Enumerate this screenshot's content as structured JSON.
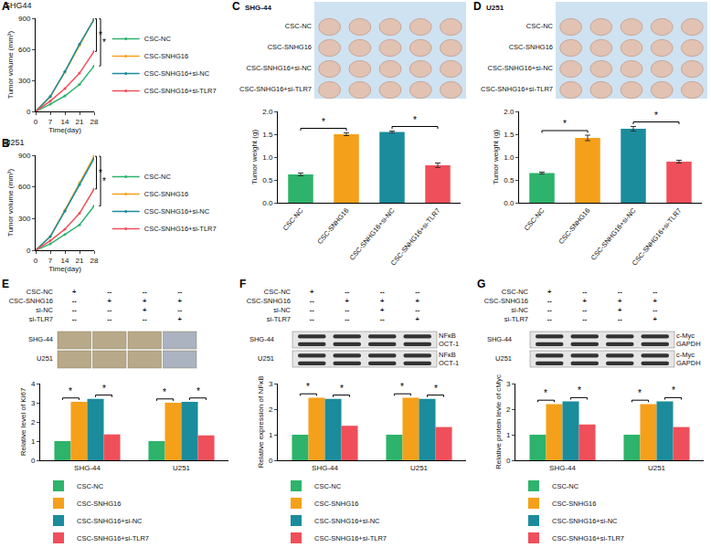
{
  "chart_data": [
    {
      "panel": "A",
      "type": "line",
      "title": "SHG44",
      "x_label": "Time(day)",
      "y_label": "Tumor volume (mm³)",
      "x": [
        0,
        7,
        14,
        21,
        28
      ],
      "xlim": [
        0,
        28
      ],
      "xticks": [
        0,
        7,
        14,
        21,
        28
      ],
      "ylim": [
        0,
        900
      ],
      "yticks": [
        0,
        300,
        600,
        900
      ],
      "series": [
        {
          "name": "CSC-NC",
          "color": "#2db36b",
          "values": [
            0,
            70,
            150,
            260,
            440
          ]
        },
        {
          "name": "CSC-SNHG16",
          "color": "#f5a01a",
          "values": [
            0,
            140,
            380,
            640,
            895
          ]
        },
        {
          "name": "CSC-SNHG16+si-NC",
          "color": "#1a8c9c",
          "values": [
            0,
            145,
            385,
            650,
            890
          ]
        },
        {
          "name": "CSC-SNHG16+si-TLR7",
          "color": "#ef4f5a",
          "values": [
            0,
            100,
            220,
            370,
            580
          ]
        }
      ],
      "brackets": [
        {
          "from": "CSC-SNHG16",
          "to": "CSC-SNHG16+si-TLR7",
          "label": "*"
        },
        {
          "from": "CSC-SNHG16",
          "to": "CSC-NC",
          "label": "*"
        }
      ]
    },
    {
      "panel": "B",
      "type": "line",
      "title": "U251",
      "x_label": "Time(day)",
      "y_label": "Tumor volume (mm³)",
      "x": [
        0,
        7,
        14,
        21,
        28
      ],
      "xlim": [
        0,
        28
      ],
      "xticks": [
        0,
        7,
        14,
        21,
        28
      ],
      "ylim": [
        0,
        900
      ],
      "yticks": [
        0,
        300,
        600,
        900
      ],
      "series": [
        {
          "name": "CSC-NC",
          "color": "#2db36b",
          "values": [
            0,
            60,
            150,
            240,
            420
          ]
        },
        {
          "name": "CSC-SNHG16",
          "color": "#f5a01a",
          "values": [
            0,
            130,
            380,
            640,
            890
          ]
        },
        {
          "name": "CSC-SNHG16+si-NC",
          "color": "#1a8c9c",
          "values": [
            0,
            130,
            370,
            620,
            870
          ]
        },
        {
          "name": "CSC-SNHG16+si-TLR7",
          "color": "#ef4f5a",
          "values": [
            0,
            90,
            200,
            350,
            580
          ]
        }
      ],
      "brackets": [
        {
          "from": "CSC-SNHG16",
          "to": "CSC-SNHG16+si-TLR7",
          "label": "*"
        },
        {
          "from": "CSC-SNHG16",
          "to": "CSC-NC",
          "label": "*"
        }
      ]
    },
    {
      "panel": "C",
      "type": "bar",
      "photo_title": "SHG-44",
      "photo_rows": [
        "CSC-NC",
        "CSC-SNHG16",
        "CSC-SNHG16+si-NC",
        "CSC-SNHG16+si-TLR7"
      ],
      "categories": [
        "CSC-NC",
        "CSC-SNHG16",
        "CSC-SNHG16+si-NC",
        "CSC-SNHG16+si-TLR7"
      ],
      "values": [
        0.62,
        1.5,
        1.55,
        0.82
      ],
      "errors": [
        0.03,
        0.03,
        0.02,
        0.05
      ],
      "colors": [
        "#2db36b",
        "#f5a01a",
        "#1a8c9c",
        "#ef4f5a"
      ],
      "y_label": "Tumor weight (g)",
      "ylim": [
        0,
        2
      ],
      "yticks": [
        {
          "value": 0,
          "label": "0.0"
        },
        0.5,
        {
          "value": 1,
          "label": "1.0"
        },
        1.5,
        {
          "value": 2,
          "label": "2.0"
        }
      ],
      "brackets": [
        {
          "from": 0,
          "to": 1,
          "label": "*"
        },
        {
          "from": 2,
          "to": 3,
          "label": "*"
        }
      ]
    },
    {
      "panel": "D",
      "type": "bar",
      "photo_title": "U251",
      "photo_rows": [
        "CSC-NC",
        "CSC-SNHG16",
        "CSC-SNHG16+si-NC",
        "CSC-SNHG16+si-TLR7"
      ],
      "categories": [
        "CSC-NC",
        "CSC-SNHG16",
        "CSC-SNHG16+si-NC",
        "CSC-SNHG16+si-TLR7"
      ],
      "values": [
        0.65,
        1.42,
        1.62,
        0.9
      ],
      "errors": [
        0.02,
        0.06,
        0.05,
        0.03
      ],
      "colors": [
        "#2db36b",
        "#f5a01a",
        "#1a8c9c",
        "#ef4f5a"
      ],
      "y_label": "Tumor weight (g)",
      "ylim": [
        0,
        2
      ],
      "yticks": [
        {
          "value": 0,
          "label": "0.0"
        },
        0.5,
        {
          "value": 1,
          "label": "1.0"
        },
        1.5,
        {
          "value": 2,
          "label": "2.0"
        }
      ],
      "brackets": [
        {
          "from": 0,
          "to": 1,
          "label": "*"
        },
        {
          "from": 2,
          "to": 3,
          "label": "*"
        }
      ]
    },
    {
      "panel": "E",
      "type": "bar",
      "conditions": [
        {
          "label": "CSC-NC",
          "marks": [
            "+",
            "--",
            "--",
            "--"
          ]
        },
        {
          "label": "CSC-SNHG16",
          "marks": [
            "--",
            "+",
            "+",
            "+"
          ]
        },
        {
          "label": "si-NC",
          "marks": [
            "--",
            "--",
            "+",
            "--"
          ]
        },
        {
          "label": "si-TLR7",
          "marks": [
            "--",
            "--",
            "--",
            "+"
          ]
        }
      ],
      "image_rows": [
        "SHG-44",
        "U251"
      ],
      "categories": [
        "SHG-44",
        "U251"
      ],
      "series": [
        {
          "name": "CSC-NC",
          "color": "#2db36b",
          "values": [
            1,
            1
          ]
        },
        {
          "name": "CSC-SNHG16",
          "color": "#f5a01a",
          "values": [
            3.05,
            3.0
          ]
        },
        {
          "name": "CSC-SNHG16+si-NC",
          "color": "#1a8c9c",
          "values": [
            3.2,
            3.05
          ]
        },
        {
          "name": "CSC-SNHG16+si-TLR7",
          "color": "#ef4f5a",
          "values": [
            1.35,
            1.3
          ]
        }
      ],
      "y_label": "Relative level of Ki67",
      "ylim": [
        0,
        4
      ],
      "yticks": [
        0,
        1,
        2,
        3,
        4
      ],
      "brackets": [
        {
          "from": 0,
          "to": 1,
          "label": "*"
        },
        {
          "from": 2,
          "to": 3,
          "label": "*"
        }
      ]
    },
    {
      "panel": "F",
      "type": "bar",
      "conditions": [
        {
          "label": "CSC-NC",
          "marks": [
            "+",
            "--",
            "--",
            "--"
          ]
        },
        {
          "label": "CSC-SNHG16",
          "marks": [
            "--",
            "+",
            "+",
            "+"
          ]
        },
        {
          "label": "si-NC",
          "marks": [
            "--",
            "--",
            "+",
            "--"
          ]
        },
        {
          "label": "si-TLR7",
          "marks": [
            "--",
            "--",
            "--",
            "+"
          ]
        }
      ],
      "blots": [
        {
          "cell": "SHG-44",
          "bands": [
            "NFκB",
            "OCT-1"
          ]
        },
        {
          "cell": "U251",
          "bands": [
            "NFκB",
            "OCT-1"
          ]
        }
      ],
      "categories": [
        "SHG-44",
        "U251"
      ],
      "series": [
        {
          "name": "CSC-NC",
          "color": "#2db36b",
          "values": [
            1,
            1
          ]
        },
        {
          "name": "CSC-SNHG16",
          "color": "#f5a01a",
          "values": [
            2.45,
            2.45
          ]
        },
        {
          "name": "CSC-SNHG16+si-NC",
          "color": "#1a8c9c",
          "values": [
            2.4,
            2.4
          ]
        },
        {
          "name": "CSC-SNHG16+si-TLR7",
          "color": "#ef4f5a",
          "values": [
            1.35,
            1.3
          ]
        }
      ],
      "y_label": "Relative expression of NFκB",
      "ylim": [
        0,
        3
      ],
      "yticks": [
        0,
        1,
        2,
        3
      ],
      "brackets": [
        {
          "from": 0,
          "to": 1,
          "label": "*"
        },
        {
          "from": 2,
          "to": 3,
          "label": "*"
        }
      ]
    },
    {
      "panel": "G",
      "type": "bar",
      "conditions": [
        {
          "label": "CSC-NC",
          "marks": [
            "+",
            "--",
            "--",
            "--"
          ]
        },
        {
          "label": "CSC-SNHG16",
          "marks": [
            "--",
            "+",
            "+",
            "+"
          ]
        },
        {
          "label": "si-NC",
          "marks": [
            "--",
            "--",
            "+",
            "--"
          ]
        },
        {
          "label": "si-TLR7",
          "marks": [
            "--",
            "--",
            "--",
            "+"
          ]
        }
      ],
      "blots": [
        {
          "cell": "SHG-44",
          "bands": [
            "c-Myc",
            "GAPDH"
          ]
        },
        {
          "cell": "U251",
          "bands": [
            "c-Myc",
            "GAPDH"
          ]
        }
      ],
      "categories": [
        "SHG-44",
        "U251"
      ],
      "series": [
        {
          "name": "CSC-NC",
          "color": "#2db36b",
          "values": [
            1,
            1
          ]
        },
        {
          "name": "CSC-SNHG16",
          "color": "#f5a01a",
          "values": [
            2.2,
            2.2
          ]
        },
        {
          "name": "CSC-SNHG16+si-NC",
          "color": "#1a8c9c",
          "values": [
            2.3,
            2.3
          ]
        },
        {
          "name": "CSC-SNHG16+si-TLR7",
          "color": "#ef4f5a",
          "values": [
            1.4,
            1.3
          ]
        }
      ],
      "y_label": "Relative protein levle of cMyc",
      "ylim": [
        0,
        3
      ],
      "yticks": [
        0,
        1,
        2,
        3
      ],
      "brackets": [
        {
          "from": 0,
          "to": 1,
          "label": "*"
        },
        {
          "from": 2,
          "to": 3,
          "label": "*"
        }
      ]
    }
  ]
}
